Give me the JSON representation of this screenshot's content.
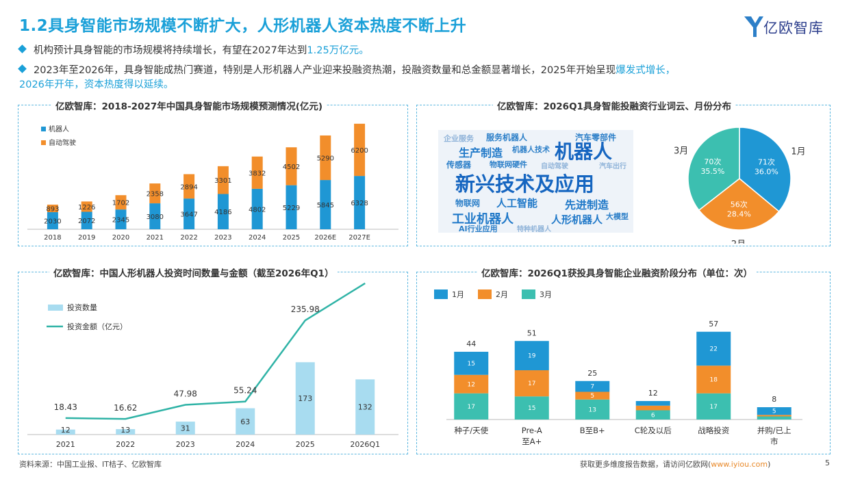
{
  "header": {
    "title": "1.2具身智能市场规模不断扩大，人形机器人资本热度不断上升",
    "logo_text": "亿欧智库"
  },
  "bullets": {
    "b1_pre": "机构预计具身智能的市场规模将持续增长，有望在2027年达到",
    "b1_hl": "1.25万亿元。",
    "b2_pre": "2023年至2026年，具身智能成热门赛道，特别是人形机器人产业迎来投融资热潮，投融资数量和总金额显著增长，2025年开始呈现",
    "b2_hl": "爆发式增长，",
    "b2_line2": "2026年开年，资本热度得以延续。"
  },
  "panels": {
    "p1_title": "亿欧智库：2018-2027年中国具身智能市场规模预测情况(亿元)",
    "p2_title": "亿欧智库：2026Q1具身智能投融资行业词云、月份分布",
    "p3_title": "亿欧智库：中国人形机器人投资时间数量与金额（截至2026年Q1）",
    "p4_title": "亿欧智库：2026Q1获投具身智能企业融资阶段分布（单位：次）"
  },
  "footer": {
    "source": "资料来源：中国工业报、IT桔子、亿欧智库",
    "more_pre": "获取更多维度报告数据，请访问亿欧网(",
    "more_link": "www.iyiou.com",
    "more_post": ")",
    "page": "5"
  },
  "wordcloud": {
    "big1": "机器人",
    "big2": "新兴技术及应用",
    "m1": "生产制造",
    "m2": "工业机器人",
    "m3": "人形机器人",
    "m4": "先进制造",
    "m5": "人工智能",
    "s1": "企业服务",
    "s2": "服务机器人",
    "s3": "汽车零部件",
    "s4": "传感器",
    "s5": "物联网硬件",
    "s6": "机器人技术",
    "s7": "物联网",
    "s8": "AI行业应用",
    "s9": "特种机器人",
    "s10": "大模型",
    "s11": "自动驾驶",
    "s12": "汽车出行"
  },
  "colors": {
    "accent": "#1aa0d8",
    "blue": "#1f97d4",
    "orange": "#f28e2b",
    "teal": "#3cbfb0",
    "lightblue": "#a8dcf0",
    "line": "#2fb3a6"
  },
  "chart_data": [
    {
      "type": "bar",
      "stacked": true,
      "categories": [
        "2018",
        "2019",
        "2020",
        "2021",
        "2022",
        "2023",
        "2024",
        "2025",
        "2026E",
        "2027E"
      ],
      "series": [
        {
          "name": "机器人",
          "values": [
            2030,
            2072,
            2345,
            3080,
            3647,
            4186,
            4802,
            5229,
            5845,
            6328
          ]
        },
        {
          "name": "自动驾驶",
          "values": [
            893,
            1226,
            1702,
            2358,
            2894,
            3301,
            3832,
            4502,
            5290,
            6200
          ]
        }
      ],
      "legend": "top-left"
    },
    {
      "type": "pie",
      "labels": [
        "1月",
        "2月",
        "3月"
      ],
      "counts": [
        "71次",
        "56次",
        "70次"
      ],
      "values": [
        71,
        56,
        70
      ],
      "percents": [
        "36.0%",
        "28.4%",
        "35.5%"
      ]
    },
    {
      "type": "bar",
      "combo": "bar+line",
      "categories": [
        "2021",
        "2022",
        "2023",
        "2024",
        "2025",
        "2026Q1"
      ],
      "series": [
        {
          "name": "投资数量",
          "type": "bar",
          "values": [
            12,
            13,
            31,
            63,
            173,
            132
          ]
        },
        {
          "name": "投资金额（亿元）",
          "type": "line",
          "values": [
            18.43,
            16.62,
            47.98,
            55.24,
            235.98,
            318.61
          ]
        }
      ],
      "legend": "top-left"
    },
    {
      "type": "bar",
      "stacked": true,
      "categories": [
        "种子/天使",
        "Pre-A至A+",
        "B至B+",
        "C轮及以后",
        "战略投资",
        "并购/已上市"
      ],
      "totals": [
        44,
        51,
        25,
        12,
        57,
        8
      ],
      "series": [
        {
          "name": "1月",
          "values": [
            15,
            19,
            7,
            3,
            22,
            5
          ]
        },
        {
          "name": "2月",
          "values": [
            12,
            17,
            5,
            3,
            18,
            1
          ]
        },
        {
          "name": "3月",
          "values": [
            17,
            15,
            13,
            6,
            17,
            2
          ]
        }
      ],
      "legend": "top-left"
    }
  ]
}
